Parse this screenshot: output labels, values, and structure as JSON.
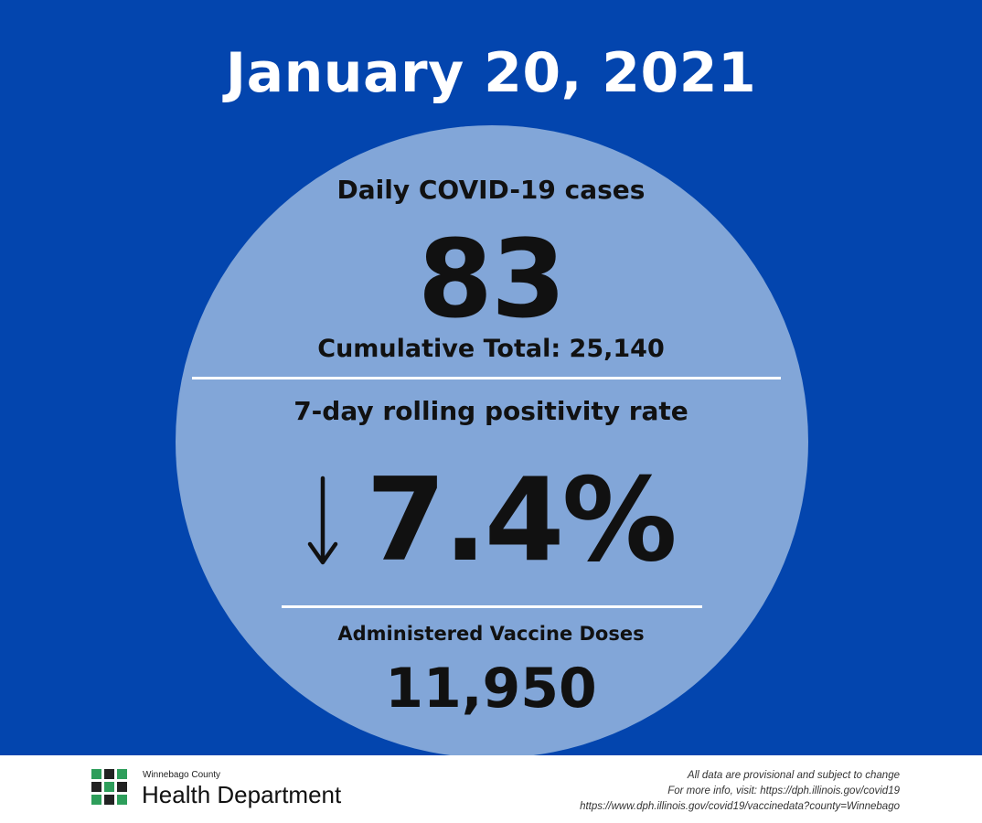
{
  "colors": {
    "background_blue": "#0345AE",
    "circle_fill": "#82A6D8",
    "divider": "#ffffff",
    "text_dark": "#111111",
    "logo_green": "#2E9E5B",
    "logo_dark": "#222222"
  },
  "header": {
    "date": "January 20, 2021"
  },
  "cases": {
    "label": "Daily COVID-19 cases",
    "value": "83",
    "cumulative": "Cumulative Total: 25,140"
  },
  "positivity": {
    "label": "7-day rolling positivity rate",
    "trend_icon": "down-arrow-icon",
    "value": "7.4%"
  },
  "vaccine": {
    "label": "Administered Vaccine Doses",
    "value": "11,950"
  },
  "footer": {
    "logo": {
      "icon": "health-department-logo-icon",
      "small_text": "Winnebago County",
      "big_text": "Health Department"
    },
    "notes": [
      "All data are provisional and subject to change",
      "For more info, visit: https://dph.illinois.gov/covid19",
      "https://www.dph.illinois.gov/covid19/vaccinedata?county=Winnebago"
    ]
  }
}
